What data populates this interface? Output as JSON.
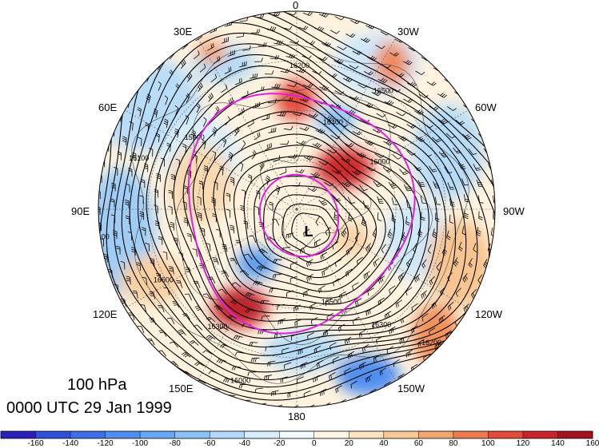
{
  "title": {
    "level": "100 hPa",
    "time": "0000 UTC 29 Jan 1999"
  },
  "longitude_labels": [
    "0",
    "30W",
    "60W",
    "90W",
    "120W",
    "150W",
    "180",
    "150E",
    "120E",
    "90E",
    "60E",
    "30E"
  ],
  "contour_labels": [
    "15900",
    "16000",
    "16100",
    "16200",
    "16300",
    "16400",
    "16500",
    "16600"
  ],
  "low_marker": "L",
  "colorbar": {
    "labels": [
      "-160",
      "-140",
      "-120",
      "-100",
      "-80",
      "-60",
      "-40",
      "-20",
      "0",
      "20",
      "40",
      "60",
      "80",
      "100",
      "120",
      "140",
      "160"
    ],
    "colors": [
      "#2a1fb8",
      "#2f4fd8",
      "#3e6fe6",
      "#4f8ef0",
      "#69a8f4",
      "#8cc2f8",
      "#b2d8fb",
      "#d7eefc",
      "#f4fbff",
      "#fff7e6",
      "#fde3bf",
      "#f9c996",
      "#f5a66e",
      "#ef7a52",
      "#e24b3a",
      "#c8232b",
      "#a3121e"
    ]
  },
  "highlight_color": "#e020e0"
}
